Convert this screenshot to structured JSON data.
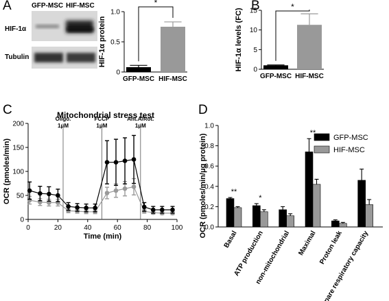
{
  "panel_letters": {
    "A": "A",
    "B": "B",
    "C": "C",
    "D": "D"
  },
  "blot": {
    "lane_labels": [
      "GFP-MSC",
      "HIF-MSC"
    ],
    "row_labels": [
      "HIF-1α",
      "Tubulin"
    ]
  },
  "chart_data": [
    {
      "type": "bar",
      "panel": "A",
      "categories": [
        "GFP-MSC",
        "HIF-MSC"
      ],
      "values": [
        0.08,
        0.75
      ],
      "errors": [
        0.03,
        0.08
      ],
      "colors": [
        "#000000",
        "#999999"
      ],
      "ylabel": "HIF-1α protein",
      "ylim": [
        0,
        1.0
      ],
      "yticks": [
        0,
        0.5,
        1.0
      ],
      "ytick_labels": [
        "0",
        "0.5",
        "1.0"
      ],
      "significance": "*"
    },
    {
      "type": "bar",
      "panel": "B",
      "categories": [
        "GFP-MSC",
        "HIF-MSC"
      ],
      "values": [
        1,
        11.3
      ],
      "errors": [
        0.1,
        2.8
      ],
      "colors": [
        "#000000",
        "#999999"
      ],
      "ylabel": "HIF-1α levels (FC)",
      "ylim": [
        0,
        15
      ],
      "yticks": [
        0,
        5,
        10,
        15
      ],
      "ytick_labels": [
        "0",
        "5",
        "10",
        "15"
      ],
      "significance": "*"
    },
    {
      "type": "line",
      "panel": "C",
      "title": "Mitochondrial stress test",
      "xlabel": "Time (min)",
      "ylabel": "OCR (pmoles/min)",
      "xlim": [
        0,
        100
      ],
      "ylim": [
        0,
        200
      ],
      "xticks": [
        0,
        20,
        40,
        60,
        80,
        100
      ],
      "yticks": [
        0,
        50,
        100,
        150,
        200
      ],
      "injections": [
        {
          "x": 23.5,
          "line1": "Oligo.",
          "line2": "1μM"
        },
        {
          "x": 49.5,
          "line1": "FCCP",
          "line2": "1μM"
        },
        {
          "x": 75.5,
          "line1": "Ant.A/Rot.",
          "line2": "1μM"
        }
      ],
      "series": [
        {
          "color": "#000000",
          "x": [
            1,
            8,
            14,
            20,
            27,
            33,
            39,
            45,
            53,
            59,
            65,
            71,
            78,
            84,
            90,
            97
          ],
          "y": [
            60,
            54,
            53,
            50,
            27,
            25,
            24,
            24,
            119,
            119,
            122,
            125,
            26,
            20,
            20,
            20
          ],
          "err": [
            18,
            15,
            15,
            13,
            8,
            8,
            8,
            8,
            45,
            48,
            48,
            50,
            9,
            7,
            7,
            7
          ]
        },
        {
          "color": "#999999",
          "x": [
            1,
            8,
            14,
            20,
            27,
            33,
            39,
            45,
            53,
            59,
            65,
            71,
            78,
            84,
            90,
            97
          ],
          "y": [
            40,
            36,
            35,
            35,
            18,
            17,
            16,
            16,
            55,
            60,
            64,
            68,
            17,
            14,
            13,
            13
          ],
          "err": [
            8,
            7,
            7,
            7,
            4,
            4,
            4,
            4,
            12,
            14,
            15,
            17,
            4,
            3,
            3,
            3
          ]
        }
      ]
    },
    {
      "type": "bar",
      "panel": "D",
      "ylabel": "OCR (pmoles/min/μg protein)",
      "ylim": [
        0,
        1.0
      ],
      "yticks": [
        0,
        0.2,
        0.4,
        0.6,
        0.8,
        1.0
      ],
      "ytick_labels": [
        "0.0",
        "0.2",
        "0.4",
        "0.6",
        "0.8",
        "1.0"
      ],
      "categories": [
        "Basal",
        "ATP production",
        "non-mitochondrial",
        "Maximal",
        "Proton leak",
        "Spare respiratory capacity"
      ],
      "series": [
        {
          "name": "GFP-MSC",
          "color": "#000000",
          "values": [
            0.28,
            0.21,
            0.17,
            0.74,
            0.06,
            0.46
          ],
          "errors": [
            0.01,
            0.02,
            0.03,
            0.13,
            0.01,
            0.11
          ]
        },
        {
          "name": "HIF-MSC",
          "color": "#999999",
          "values": [
            0.19,
            0.15,
            0.11,
            0.42,
            0.035,
            0.22
          ],
          "errors": [
            0.01,
            0.02,
            0.02,
            0.05,
            0.01,
            0.05
          ]
        }
      ],
      "significance": [
        "**",
        "*",
        "",
        "**",
        "",
        ""
      ]
    }
  ]
}
